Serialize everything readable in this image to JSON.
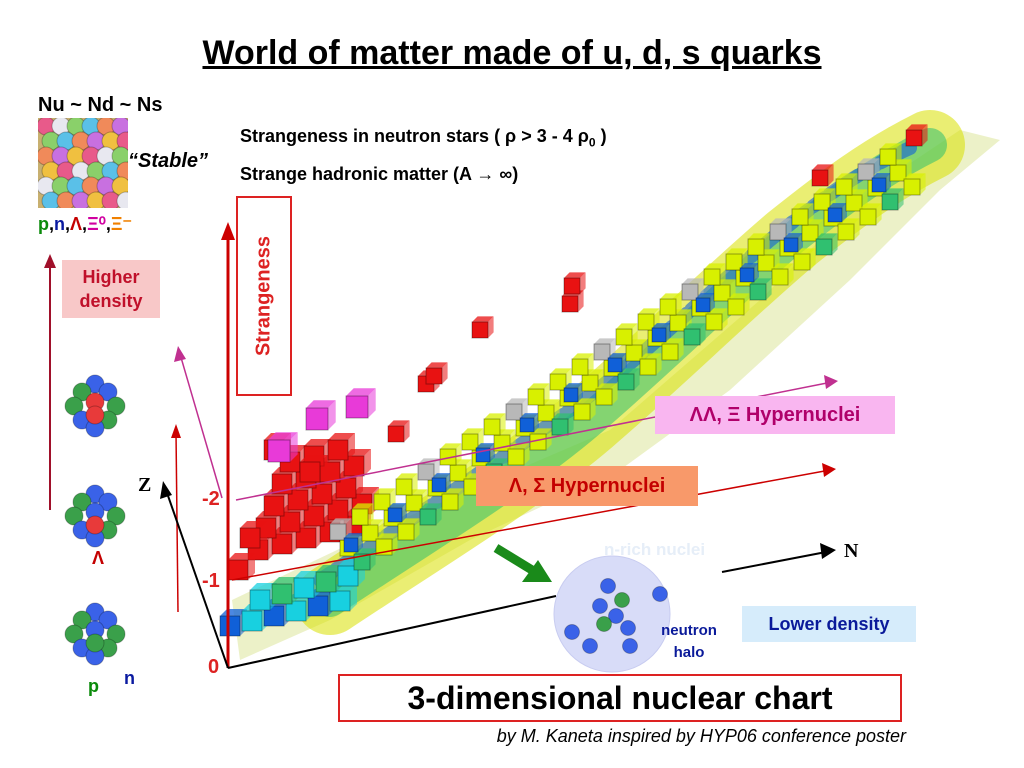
{
  "title": "World of matter made of u, d, s quarks",
  "quark_condition": "Nu ~ Nd ~ Ns",
  "stable_label": "“Stable”",
  "particles": [
    {
      "text": "p",
      "color": "#0a8a0a"
    },
    {
      "text": ",",
      "color": "#000000"
    },
    {
      "text": "n",
      "color": "#0a1aa0"
    },
    {
      "text": ",",
      "color": "#000000"
    },
    {
      "text": "Λ",
      "color": "#c40000"
    },
    {
      "text": ",",
      "color": "#000000"
    },
    {
      "text": "Ξ⁰",
      "color": "#d000a0"
    },
    {
      "text": ",",
      "color": "#000000"
    },
    {
      "text": "Ξ⁻",
      "color": "#f08000"
    }
  ],
  "headlines": {
    "neutron_stars_a": "Strangeness in neutron stars ( ρ > 3 - 4 ρ",
    "neutron_stars_sub": "0",
    "neutron_stars_b": " )",
    "hadronic": "Strange hadronic matter (A → ∞)"
  },
  "higher_density": "Higher density",
  "strangeness_label": "Strangeness",
  "ll_hypernuclei": "ΛΛ, Ξ Hypernuclei",
  "ls_hypernuclei": "Λ, Σ Hypernuclei",
  "n_rich": "n-rich nuclei",
  "lower_density": "Lower density",
  "neutron_halo": "neutron halo",
  "axis": {
    "z": "Z",
    "n": "N",
    "s0": "0",
    "s1": "-1",
    "s2": "-2"
  },
  "lambda_label": "Λ",
  "p_label": "p",
  "n_label": "n",
  "chart_title": "3-dimensional nuclear chart",
  "credit": "by M. Kaneta inspired by HYP06 conference poster",
  "colors": {
    "red_cube": "#e81212",
    "magenta_cube": "#e83ad8",
    "yellow_cube": "#d8f000",
    "green_cube": "#30c070",
    "cyan_cube": "#18d0e0",
    "blue_cube": "#1060d8",
    "gray_cube": "#b8b8b8",
    "proton": "#3a62e8",
    "neutron": "#3aa04a",
    "lambda": "#e83a3a"
  }
}
